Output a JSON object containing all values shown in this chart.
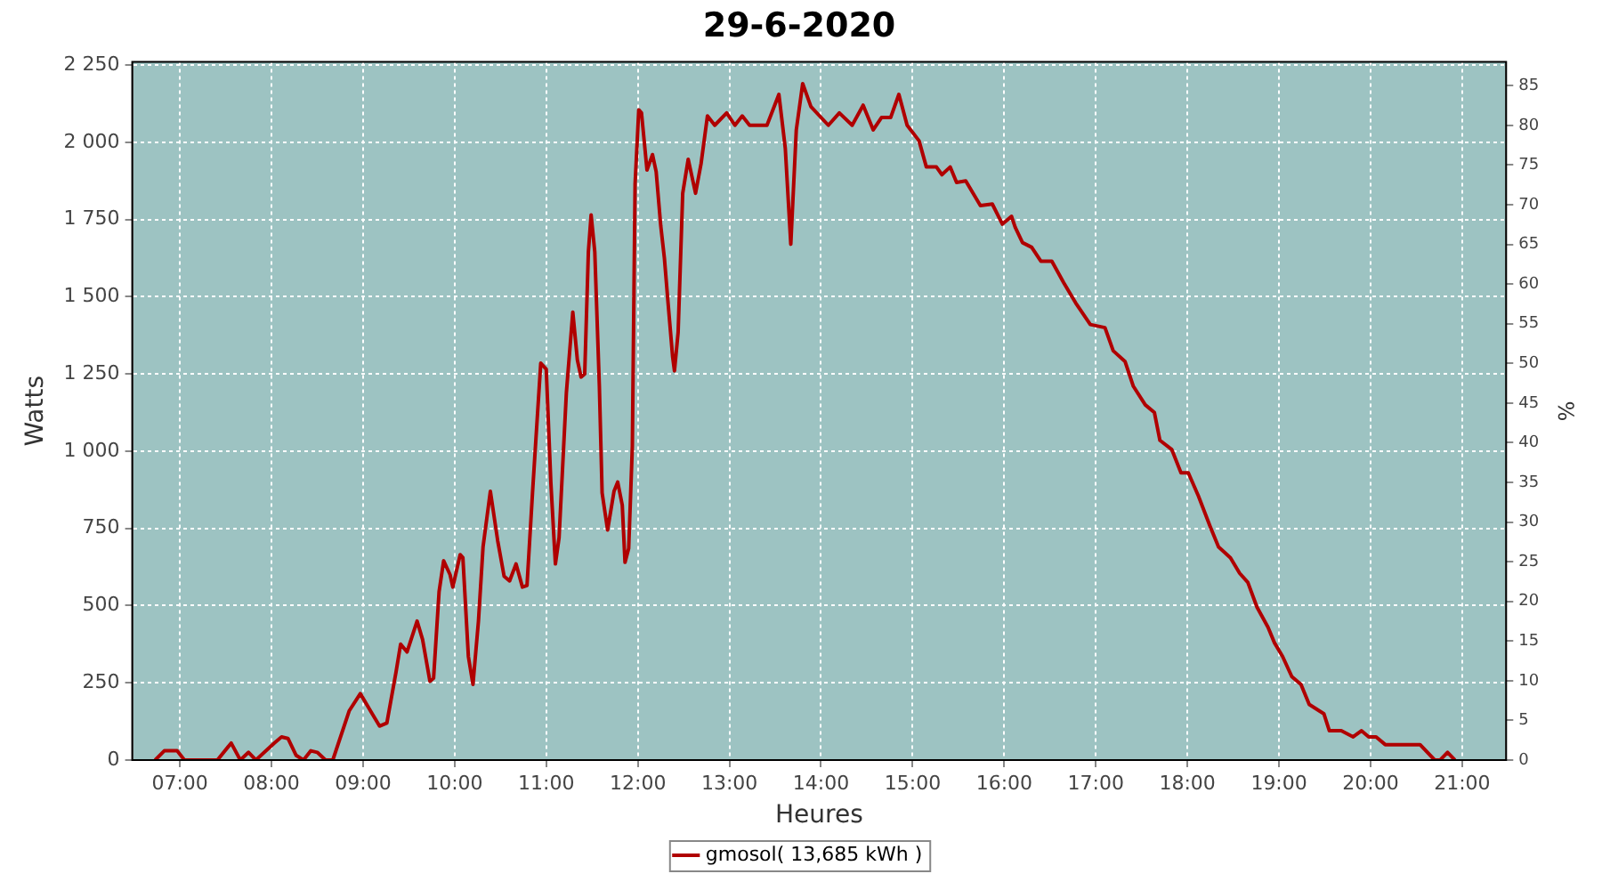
{
  "chart_data": {
    "type": "line",
    "title": "29-6-2020",
    "xlabel": "Heures",
    "ylabel": "Watts",
    "y2label": "%",
    "xlim": [
      6.48,
      21.48
    ],
    "xticks": [
      {
        "value": 7,
        "label": "07:00"
      },
      {
        "value": 8,
        "label": "08:00"
      },
      {
        "value": 9,
        "label": "09:00"
      },
      {
        "value": 10,
        "label": "10:00"
      },
      {
        "value": 11,
        "label": "11:00"
      },
      {
        "value": 12,
        "label": "12:00"
      },
      {
        "value": 13,
        "label": "13:00"
      },
      {
        "value": 14,
        "label": "14:00"
      },
      {
        "value": 15,
        "label": "15:00"
      },
      {
        "value": 16,
        "label": "16:00"
      },
      {
        "value": 17,
        "label": "17:00"
      },
      {
        "value": 18,
        "label": "18:00"
      },
      {
        "value": 19,
        "label": "19:00"
      },
      {
        "value": 20,
        "label": "20:00"
      },
      {
        "value": 21,
        "label": "21:00"
      }
    ],
    "ylim": [
      0,
      2260
    ],
    "yticks": [
      0,
      250,
      500,
      750,
      {
        "value": 1000,
        "label": "1 000"
      },
      {
        "value": 1250,
        "label": "1 250"
      },
      {
        "value": 1500,
        "label": "1 500"
      },
      {
        "value": 1750,
        "label": "1 750"
      },
      {
        "value": 2000,
        "label": "2 000"
      },
      {
        "value": 2250,
        "label": "2 250"
      }
    ],
    "y2lim": [
      0,
      88
    ],
    "y2ticks": [
      0,
      5,
      10,
      15,
      20,
      25,
      30,
      35,
      40,
      45,
      50,
      55,
      60,
      65,
      70,
      75,
      80,
      85
    ],
    "grid": true,
    "legend": "bottom",
    "marker": "none",
    "line_style": "solid",
    "series": [
      {
        "name": "gmosol( 13,685 kWh )",
        "color": "#b00000",
        "x": [
          6.73,
          6.83,
          6.97,
          7.05,
          7.41,
          7.56,
          7.66,
          7.75,
          7.83,
          8.03,
          8.11,
          8.18,
          8.27,
          8.35,
          8.43,
          8.5,
          8.59,
          8.67,
          8.85,
          8.97,
          9.1,
          9.18,
          9.26,
          9.36,
          9.41,
          9.48,
          9.59,
          9.65,
          9.73,
          9.77,
          9.83,
          9.88,
          9.95,
          9.98,
          10.06,
          10.09,
          10.15,
          10.2,
          10.26,
          10.31,
          10.39,
          10.47,
          10.54,
          10.6,
          10.67,
          10.74,
          10.79,
          10.85,
          10.94,
          11.0,
          11.05,
          11.1,
          11.14,
          11.22,
          11.29,
          11.34,
          11.38,
          11.42,
          11.46,
          11.49,
          11.53,
          11.58,
          11.61,
          11.67,
          11.74,
          11.78,
          11.83,
          11.86,
          11.9,
          11.94,
          11.97,
          12.01,
          12.04,
          12.1,
          12.16,
          12.2,
          12.25,
          12.29,
          12.33,
          12.38,
          12.4,
          12.44,
          12.49,
          12.55,
          12.63,
          12.69,
          12.76,
          12.84,
          12.97,
          13.06,
          13.14,
          13.22,
          13.41,
          13.54,
          13.61,
          13.67,
          13.73,
          13.8,
          13.89,
          14.08,
          14.2,
          14.34,
          14.46,
          14.57,
          14.66,
          14.76,
          14.85,
          14.94,
          15.07,
          15.15,
          15.26,
          15.32,
          15.41,
          15.48,
          15.58,
          15.74,
          15.87,
          15.98,
          16.08,
          16.12,
          16.2,
          16.3,
          16.4,
          16.52,
          16.65,
          16.78,
          16.94,
          17.1,
          17.19,
          17.32,
          17.41,
          17.54,
          17.64,
          17.7,
          17.83,
          17.93,
          18.01,
          18.12,
          18.25,
          18.34,
          18.47,
          18.57,
          18.66,
          18.76,
          18.88,
          18.95,
          19.04,
          19.14,
          19.24,
          19.33,
          19.49,
          19.55,
          19.68,
          19.81,
          19.9,
          19.98,
          20.06,
          20.16,
          20.54,
          20.7,
          20.76,
          20.84,
          20.92
        ],
        "values": [
          0,
          30,
          30,
          0,
          0,
          55,
          0,
          25,
          0,
          55,
          75,
          70,
          15,
          0,
          30,
          25,
          0,
          0,
          160,
          215,
          150,
          110,
          120,
          285,
          375,
          350,
          450,
          390,
          255,
          265,
          545,
          645,
          600,
          560,
          665,
          655,
          335,
          245,
          450,
          690,
          870,
          710,
          595,
          580,
          635,
          560,
          565,
          865,
          1285,
          1265,
          900,
          635,
          720,
          1190,
          1450,
          1295,
          1240,
          1250,
          1645,
          1765,
          1645,
          1210,
          865,
          745,
          870,
          900,
          825,
          640,
          685,
          1015,
          1865,
          2105,
          2095,
          1910,
          1960,
          1905,
          1730,
          1625,
          1480,
          1305,
          1260,
          1385,
          1835,
          1945,
          1835,
          1930,
          2085,
          2055,
          2095,
          2055,
          2085,
          2055,
          2055,
          2155,
          1980,
          1670,
          2040,
          2190,
          2115,
          2055,
          2095,
          2055,
          2120,
          2040,
          2080,
          2080,
          2155,
          2055,
          2005,
          1920,
          1920,
          1895,
          1920,
          1870,
          1875,
          1795,
          1800,
          1735,
          1760,
          1725,
          1675,
          1660,
          1615,
          1615,
          1545,
          1480,
          1410,
          1400,
          1325,
          1290,
          1210,
          1150,
          1125,
          1035,
          1005,
          930,
          930,
          855,
          755,
          690,
          655,
          605,
          575,
          495,
          430,
          380,
          335,
          270,
          245,
          180,
          150,
          95,
          95,
          75,
          95,
          75,
          75,
          50,
          50,
          0,
          0,
          25,
          0
        ]
      }
    ]
  }
}
